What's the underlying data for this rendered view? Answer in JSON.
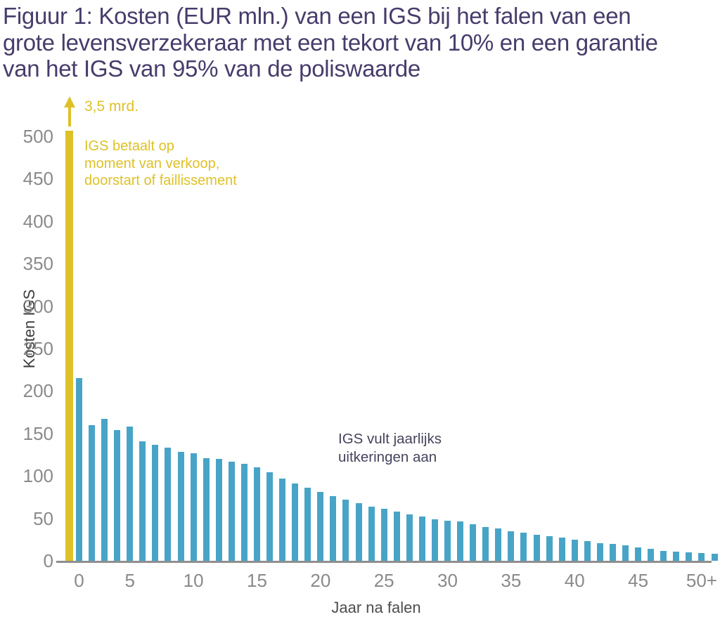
{
  "figure_label": "Figuur 1",
  "chart_data": {
    "type": "bar",
    "title": "Figuur 1:  Kosten (EUR mln.) van een IGS bij het falen van een\ngrote levensverzekeraar met een tekort van 10% en een garantie\nvan het IGS van 95% van de poliswaarde",
    "xlabel": "Jaar na falen",
    "ylabel": "Kosten IGS",
    "ylim": [
      0,
      500
    ],
    "y_ticks": [
      0,
      50,
      100,
      150,
      200,
      250,
      300,
      350,
      400,
      450,
      500
    ],
    "x_ticks": [
      {
        "label": "0",
        "bar_index": 0
      },
      {
        "label": "5",
        "bar_index": 4
      },
      {
        "label": "10",
        "bar_index": 9
      },
      {
        "label": "15",
        "bar_index": 14
      },
      {
        "label": "20",
        "bar_index": 19
      },
      {
        "label": "25",
        "bar_index": 24
      },
      {
        "label": "30",
        "bar_index": 29
      },
      {
        "label": "35",
        "bar_index": 34
      },
      {
        "label": "40",
        "bar_index": 39
      },
      {
        "label": "45",
        "bar_index": 44
      },
      {
        "label": "50+",
        "bar_index": 49
      }
    ],
    "grid": false,
    "legend_position": "none (series annotated with in-chart text)",
    "series": [
      {
        "name": "IGS betaalt op moment van verkoop, doorstart of faillissement",
        "color": "#dec128",
        "x": [
          0
        ],
        "values": [
          3500
        ],
        "display": "bar clipped at top of axis, continued by upward arrow, labelled 3,5 mrd."
      },
      {
        "name": "IGS vult jaarlijks uitkeringen aan",
        "color": "#48a4c7",
        "x": [
          1,
          2,
          3,
          4,
          5,
          6,
          7,
          8,
          9,
          10,
          11,
          12,
          13,
          14,
          15,
          16,
          17,
          18,
          19,
          20,
          21,
          22,
          23,
          24,
          25,
          26,
          27,
          28,
          29,
          30,
          31,
          32,
          33,
          34,
          35,
          36,
          37,
          38,
          39,
          40,
          41,
          42,
          43,
          44,
          45,
          46,
          47,
          48,
          49,
          50,
          51
        ],
        "values": [
          215,
          160,
          167,
          154,
          158,
          141,
          137,
          133,
          128,
          127,
          121,
          120,
          117,
          114,
          110,
          104,
          97,
          91,
          86,
          81,
          76,
          72,
          68,
          64,
          61,
          58,
          55,
          52,
          49,
          47,
          46,
          43,
          40,
          38,
          35,
          33,
          31,
          29,
          27,
          25,
          23,
          21,
          20,
          18,
          16,
          14,
          12,
          11,
          10,
          9,
          8
        ],
        "x_note": "jaren na falen; laatste staaf gelabeld 50+"
      }
    ],
    "annotations": [
      {
        "text": "3,5 mrd.",
        "color": "#dec128"
      },
      {
        "text": "IGS betaalt op\nmoment van verkoop,\ndoorstart of faillissement",
        "color": "#dec128"
      },
      {
        "text": "IGS vult jaarlijks\nuitkeringen aan",
        "color": "#45445c"
      }
    ]
  },
  "colors": {
    "title_text": "#473c6b",
    "immediate_bar": "#dec128",
    "annual_bar": "#48a4c7",
    "tick_labels": "#8a8a8a",
    "axis_line": "#8f8f8f",
    "axis_titles": "#3c3c3c",
    "blue_note_text": "#45445c",
    "background": "#ffffff"
  }
}
